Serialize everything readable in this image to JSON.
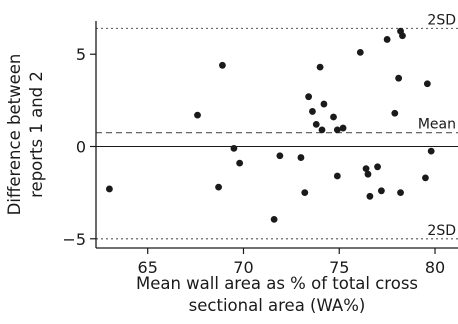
{
  "chart_data": {
    "type": "scatter",
    "title": "",
    "xlabel_lines": [
      "Mean wall area as % of total cross",
      "sectional area (WA%)"
    ],
    "ylabel_lines": [
      "Difference between",
      "reports 1 and 2"
    ],
    "xlim": [
      62.3,
      81.2
    ],
    "ylim": [
      -5.5,
      6.8
    ],
    "xticks": [
      65,
      70,
      75,
      80
    ],
    "xtick_labels": [
      "65",
      "70",
      "75",
      "80"
    ],
    "yticks": [
      -5,
      0,
      5
    ],
    "ytick_labels": [
      "−5",
      "0",
      "5"
    ],
    "grid": false,
    "colors": {
      "points": "#1a1a1a",
      "axes": "#1a1a1a",
      "reference_lines": "#555555"
    },
    "reference_lines": [
      {
        "label": "2SD",
        "y": 6.4,
        "style": "dotted"
      },
      {
        "label": "Mean",
        "y": 0.75,
        "style": "dashed"
      },
      {
        "label": "",
        "y": 0,
        "style": "solid"
      },
      {
        "label": "2SD",
        "y": -5.0,
        "style": "dotted"
      }
    ],
    "points": [
      {
        "x": 63.0,
        "y": -2.3
      },
      {
        "x": 67.6,
        "y": 1.7
      },
      {
        "x": 68.7,
        "y": -2.2
      },
      {
        "x": 68.9,
        "y": 4.4
      },
      {
        "x": 69.5,
        "y": -0.1
      },
      {
        "x": 69.8,
        "y": -0.9
      },
      {
        "x": 71.6,
        "y": -3.95
      },
      {
        "x": 71.9,
        "y": -0.5
      },
      {
        "x": 73.0,
        "y": -0.6
      },
      {
        "x": 73.2,
        "y": -2.5
      },
      {
        "x": 73.4,
        "y": 2.7
      },
      {
        "x": 73.6,
        "y": 1.9
      },
      {
        "x": 73.8,
        "y": 1.2
      },
      {
        "x": 74.0,
        "y": 4.3
      },
      {
        "x": 74.1,
        "y": 0.9
      },
      {
        "x": 74.2,
        "y": 2.3
      },
      {
        "x": 74.7,
        "y": 1.6
      },
      {
        "x": 74.9,
        "y": -1.6
      },
      {
        "x": 74.9,
        "y": 0.9
      },
      {
        "x": 75.2,
        "y": 1.0
      },
      {
        "x": 76.1,
        "y": 5.1
      },
      {
        "x": 76.4,
        "y": -1.2
      },
      {
        "x": 76.5,
        "y": -1.5
      },
      {
        "x": 76.6,
        "y": -2.7
      },
      {
        "x": 77.0,
        "y": -1.1
      },
      {
        "x": 77.2,
        "y": -2.4
      },
      {
        "x": 77.5,
        "y": 5.8
      },
      {
        "x": 77.9,
        "y": 1.8
      },
      {
        "x": 78.1,
        "y": 3.7
      },
      {
        "x": 78.2,
        "y": -2.5
      },
      {
        "x": 78.2,
        "y": 6.25
      },
      {
        "x": 78.3,
        "y": 6.0
      },
      {
        "x": 79.5,
        "y": -1.7
      },
      {
        "x": 79.6,
        "y": 3.4
      },
      {
        "x": 79.8,
        "y": -0.25
      }
    ]
  }
}
